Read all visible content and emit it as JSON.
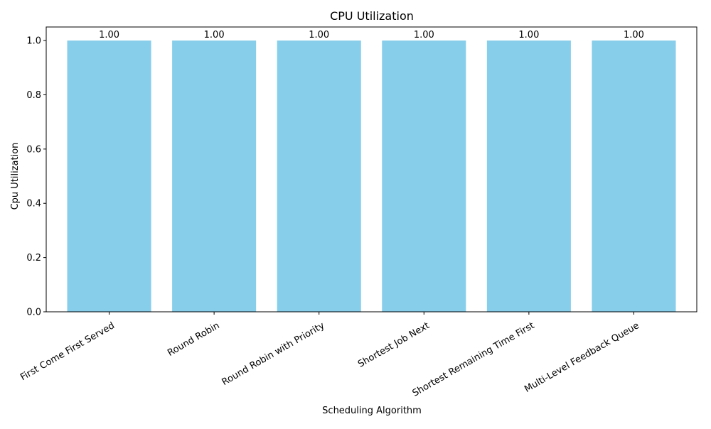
{
  "chart_data": {
    "type": "bar",
    "title": "CPU Utilization",
    "xlabel": "Scheduling Algorithm",
    "ylabel": "Cpu Utilization",
    "categories": [
      "First Come First Served",
      "Round Robin",
      "Round Robin with Priority",
      "Shortest Job Next",
      "Shortest Remaining Time First",
      "Multi-Level Feedback Queue"
    ],
    "values": [
      1.0,
      1.0,
      1.0,
      1.0,
      1.0,
      1.0
    ],
    "data_labels": [
      "1.00",
      "1.00",
      "1.00",
      "1.00",
      "1.00",
      "1.00"
    ],
    "ylim": [
      0,
      1.05
    ],
    "yticks": [
      0.0,
      0.2,
      0.4,
      0.6,
      0.8,
      1.0
    ],
    "ytick_labels": [
      "0.0",
      "0.2",
      "0.4",
      "0.6",
      "0.8",
      "1.0"
    ],
    "grid": false,
    "legend": "none",
    "bar_color": "#87ceeb"
  }
}
